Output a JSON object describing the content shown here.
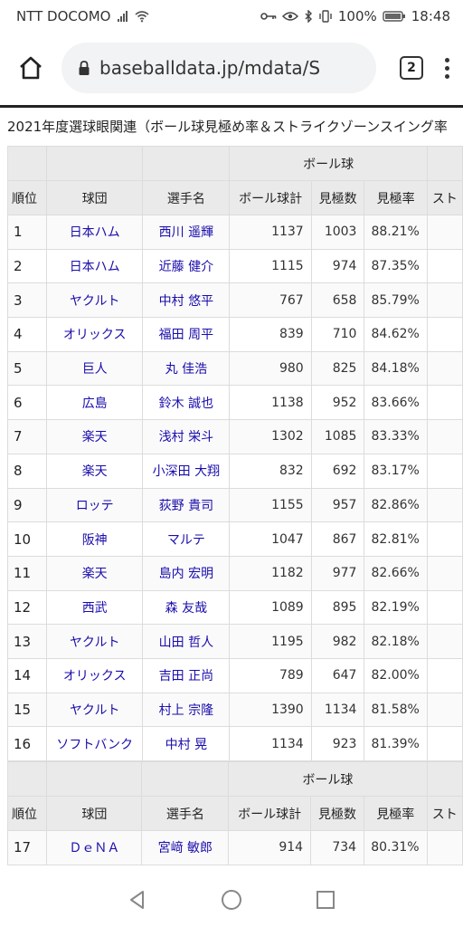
{
  "status_bar": {
    "carrier": "NTT DOCOMO",
    "battery": "100%",
    "time": "18:48"
  },
  "browser": {
    "url": "baseballdata.jp/mdata/S",
    "tab_count": "2"
  },
  "page": {
    "title": "2021年度選球眼関連（ボール球見極め率＆ストライクゾーンスイング率",
    "group_header": "ボール球",
    "columns": {
      "rank": "順位",
      "team": "球団",
      "player": "選手名",
      "ball_total": "ボール球計",
      "saw": "見極数",
      "rate": "見極率",
      "strike": "スト"
    },
    "rows": [
      {
        "rank": "1",
        "team": "日本ハム",
        "player": "西川 遥輝",
        "ball_total": "1137",
        "saw": "1003",
        "rate": "88.21%"
      },
      {
        "rank": "2",
        "team": "日本ハム",
        "player": "近藤 健介",
        "ball_total": "1115",
        "saw": "974",
        "rate": "87.35%"
      },
      {
        "rank": "3",
        "team": "ヤクルト",
        "player": "中村 悠平",
        "ball_total": "767",
        "saw": "658",
        "rate": "85.79%"
      },
      {
        "rank": "4",
        "team": "オリックス",
        "player": "福田 周平",
        "ball_total": "839",
        "saw": "710",
        "rate": "84.62%"
      },
      {
        "rank": "5",
        "team": "巨人",
        "player": "丸 佳浩",
        "ball_total": "980",
        "saw": "825",
        "rate": "84.18%"
      },
      {
        "rank": "6",
        "team": "広島",
        "player": "鈴木 誠也",
        "ball_total": "1138",
        "saw": "952",
        "rate": "83.66%"
      },
      {
        "rank": "7",
        "team": "楽天",
        "player": "浅村 栄斗",
        "ball_total": "1302",
        "saw": "1085",
        "rate": "83.33%"
      },
      {
        "rank": "8",
        "team": "楽天",
        "player": "小深田 大翔",
        "ball_total": "832",
        "saw": "692",
        "rate": "83.17%"
      },
      {
        "rank": "9",
        "team": "ロッテ",
        "player": "荻野 貴司",
        "ball_total": "1155",
        "saw": "957",
        "rate": "82.86%"
      },
      {
        "rank": "10",
        "team": "阪神",
        "player": "マルテ",
        "ball_total": "1047",
        "saw": "867",
        "rate": "82.81%"
      },
      {
        "rank": "11",
        "team": "楽天",
        "player": "島内 宏明",
        "ball_total": "1182",
        "saw": "977",
        "rate": "82.66%"
      },
      {
        "rank": "12",
        "team": "西武",
        "player": "森 友哉",
        "ball_total": "1089",
        "saw": "895",
        "rate": "82.19%"
      },
      {
        "rank": "13",
        "team": "ヤクルト",
        "player": "山田 哲人",
        "ball_total": "1195",
        "saw": "982",
        "rate": "82.18%"
      },
      {
        "rank": "14",
        "team": "オリックス",
        "player": "吉田 正尚",
        "ball_total": "789",
        "saw": "647",
        "rate": "82.00%"
      },
      {
        "rank": "15",
        "team": "ヤクルト",
        "player": "村上 宗隆",
        "ball_total": "1390",
        "saw": "1134",
        "rate": "81.58%"
      },
      {
        "rank": "16",
        "team": "ソフトバンク",
        "player": "中村 晃",
        "ball_total": "1134",
        "saw": "923",
        "rate": "81.39%"
      }
    ],
    "rows_after": [
      {
        "rank": "17",
        "team": "ＤｅＮＡ",
        "player": "宮﨑 敏郎",
        "ball_total": "914",
        "saw": "734",
        "rate": "80.31%"
      }
    ]
  }
}
